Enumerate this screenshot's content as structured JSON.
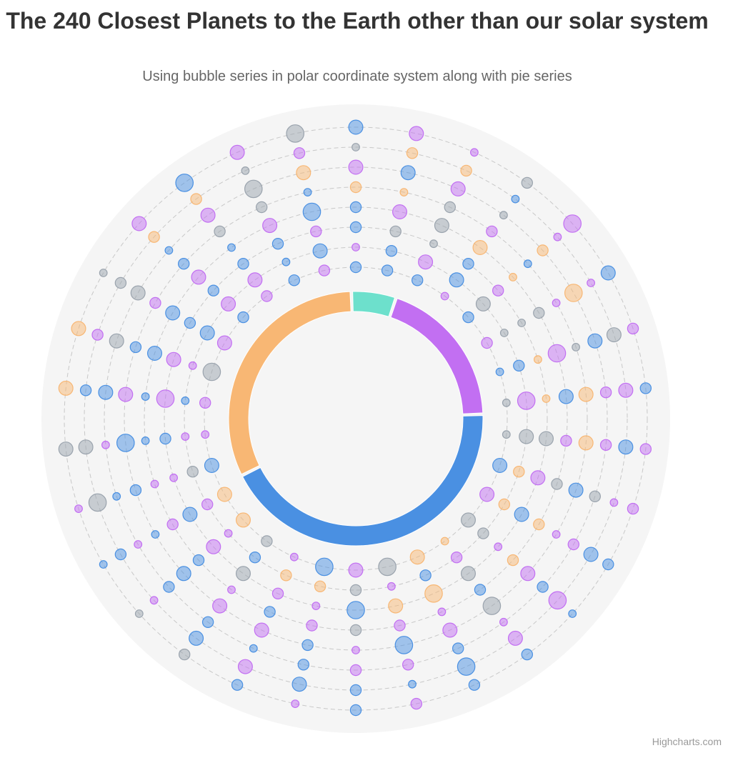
{
  "header": {
    "title": "The 240 Closest Planets to the Earth other than our solar system",
    "subtitle": "Using bubble series in polar coordinate system along with pie series"
  },
  "credits": "Highcharts.com",
  "colors": {
    "blue": "#4a90e2",
    "purple": "#c26ff2",
    "orange": "#f8b774",
    "teal": "#6de0cc",
    "gray": "#9aa3ad",
    "plotBand": "#f5f5f5",
    "gridLine": "#c8c8c8"
  },
  "chart_data": {
    "type": "polar-bubble-with-pie",
    "rings": 8,
    "spokes": 30,
    "grid": true,
    "pie": [
      {
        "color": "blue",
        "value": 38
      },
      {
        "color": "orange",
        "value": 28
      },
      {
        "color": "teal",
        "value": 5
      },
      {
        "color": "purple",
        "value": 17
      }
    ],
    "bubble_color_pattern": [
      "blue",
      "purple",
      "gray",
      "purple",
      "blue",
      "orange",
      "purple",
      "blue",
      "gray",
      "purple",
      "blue",
      "purple",
      "orange",
      "gray",
      "blue",
      "purple",
      "blue",
      "gray",
      "purple",
      "blue",
      "orange",
      "purple",
      "blue",
      "purple",
      "gray",
      "blue",
      "purple",
      "orange",
      "blue",
      "purple",
      "gray",
      "blue"
    ],
    "bubble_size_pattern": [
      2,
      3,
      1,
      2,
      4,
      2,
      3,
      1,
      2,
      3,
      2,
      1,
      3,
      2,
      4,
      1,
      2,
      3,
      2,
      1,
      2,
      4,
      3,
      1,
      2,
      2,
      3,
      1,
      2,
      3,
      1,
      2,
      3
    ]
  }
}
